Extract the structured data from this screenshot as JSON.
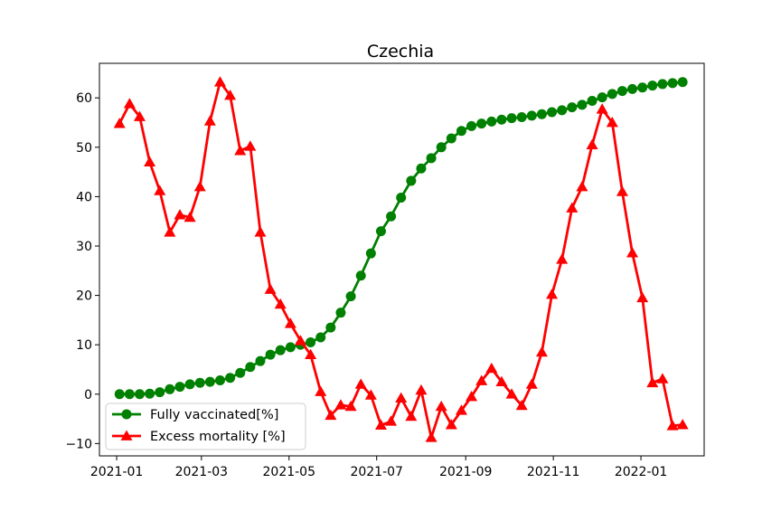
{
  "chart_data": {
    "type": "line",
    "title": "Czechia",
    "xlabel": "",
    "ylabel": "",
    "x_start": "2021-01-03",
    "x_step_days": 7,
    "xlim": [
      "2020-12-20",
      "2022-02-14"
    ],
    "ylim": [
      -12.5,
      67
    ],
    "x_ticks": [
      "2021-01",
      "2021-03",
      "2021-05",
      "2021-07",
      "2021-09",
      "2021-11",
      "2022-01"
    ],
    "x_tick_dates": [
      "2021-01-01",
      "2021-03-01",
      "2021-05-01",
      "2021-07-01",
      "2021-09-01",
      "2021-11-01",
      "2022-01-01"
    ],
    "y_ticks": [
      -10,
      0,
      10,
      20,
      30,
      40,
      50,
      60
    ],
    "y_tick_labels": [
      "−10",
      "0",
      "10",
      "20",
      "30",
      "40",
      "50",
      "60"
    ],
    "grid": false,
    "legend_position": "lower-left",
    "series": [
      {
        "name": "Fully vaccinated[%]",
        "color": "#008000",
        "marker": "circle",
        "values": [
          0.0,
          0.0,
          0.0,
          0.1,
          0.4,
          1.0,
          1.5,
          2.0,
          2.3,
          2.5,
          2.8,
          3.3,
          4.3,
          5.5,
          6.7,
          8.0,
          8.9,
          9.5,
          10.0,
          10.5,
          11.5,
          13.5,
          16.5,
          19.8,
          24.0,
          28.5,
          33.0,
          36.0,
          39.8,
          43.2,
          45.7,
          47.8,
          50.0,
          51.8,
          53.3,
          54.3,
          54.8,
          55.2,
          55.6,
          55.9,
          56.1,
          56.4,
          56.7,
          57.1,
          57.5,
          58.1,
          58.6,
          59.4,
          60.1,
          60.8,
          61.4,
          61.8,
          62.1,
          62.5,
          62.8,
          63.0,
          63.2
        ]
      },
      {
        "name": "Excess mortality [%]",
        "color": "#ff0000",
        "marker": "triangle",
        "values": [
          54.8,
          58.8,
          56.2,
          47.0,
          41.2,
          32.8,
          36.3,
          35.8,
          42.0,
          55.3,
          63.2,
          60.5,
          49.3,
          50.2,
          32.8,
          21.2,
          18.2,
          14.3,
          10.8,
          8.0,
          0.5,
          -4.3,
          -2.2,
          -2.5,
          2.0,
          -0.2,
          -6.3,
          -5.5,
          -0.8,
          -4.5,
          0.8,
          -8.8,
          -2.5,
          -6.2,
          -3.3,
          -0.5,
          2.7,
          5.2,
          2.5,
          0.0,
          -2.3,
          2.0,
          8.5,
          20.2,
          27.3,
          37.7,
          42.0,
          50.5,
          57.7,
          55.0,
          41.0,
          28.6,
          19.5,
          2.3,
          3.1,
          -6.4,
          -6.2
        ]
      }
    ]
  }
}
